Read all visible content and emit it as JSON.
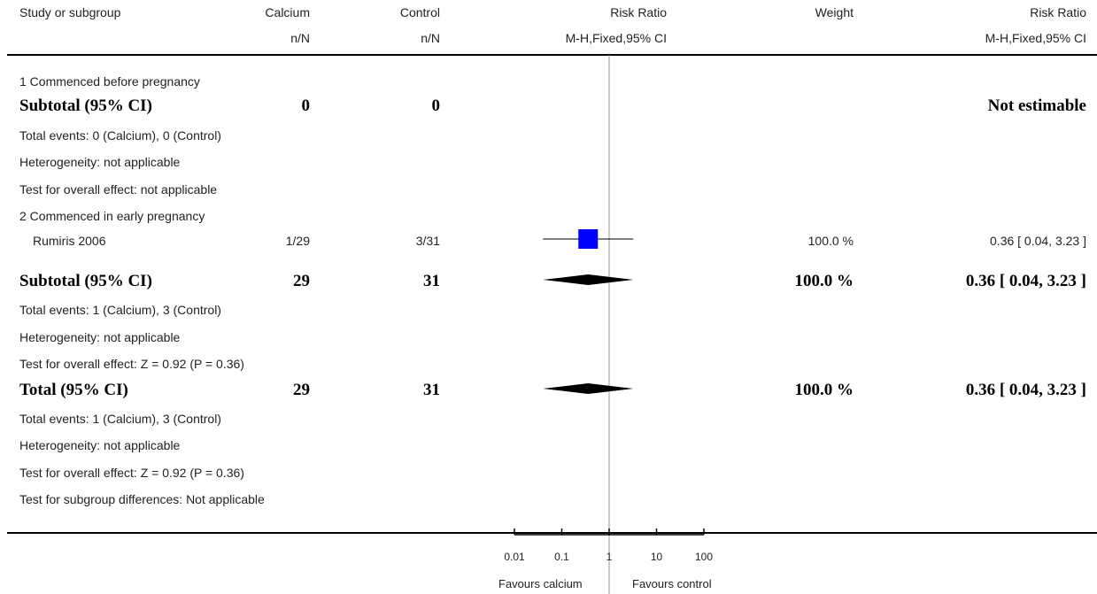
{
  "header": {
    "study": "Study or subgroup",
    "calcium": "Calcium",
    "control": "Control",
    "rr_plot": "Risk Ratio",
    "weight": "Weight",
    "rr_text": "Risk Ratio",
    "calcium_sub": "n/N",
    "control_sub": "n/N",
    "rr_plot_sub": "M-H,Fixed,95% CI",
    "rr_text_sub": "M-H,Fixed,95% CI"
  },
  "rows": {
    "g1_title": "1 Commenced before pregnancy",
    "g1_subtotal": {
      "label": "Subtotal (95% CI)",
      "calcium": "0",
      "control": "0",
      "ci": "Not estimable"
    },
    "g1_events": "Total events: 0 (Calcium), 0 (Control)",
    "g1_het": "Heterogeneity: not applicable",
    "g1_test": "Test for overall effect: not applicable",
    "g2_title": "2 Commenced in early pregnancy",
    "g2_study": {
      "label": "Rumiris 2006",
      "calcium": "1/29",
      "control": "3/31",
      "weight": "100.0 %",
      "ci": "0.36 [ 0.04, 3.23 ]"
    },
    "g2_subtotal": {
      "label": "Subtotal (95% CI)",
      "calcium": "29",
      "control": "31",
      "weight": "100.0 %",
      "ci": "0.36 [ 0.04, 3.23 ]"
    },
    "g2_events": "Total events: 1 (Calcium), 3 (Control)",
    "g2_het": "Heterogeneity: not applicable",
    "g2_test": "Test for overall effect: Z = 0.92 (P = 0.36)",
    "total": {
      "label": "Total (95% CI)",
      "calcium": "29",
      "control": "31",
      "weight": "100.0 %",
      "ci": "0.36 [ 0.04, 3.23 ]"
    },
    "total_events": "Total events: 1 (Calcium), 3 (Control)",
    "total_het": "Heterogeneity: not applicable",
    "total_test": "Test for overall effect: Z = 0.92 (P = 0.36)",
    "subgroup_test": "Test for subgroup differences: Not applicable"
  },
  "axis": {
    "favours_left": "Favours calcium",
    "favours_right": "Favours control"
  },
  "chart_data": {
    "type": "forest",
    "scale": "log",
    "xlim": [
      0.01,
      100
    ],
    "null_value": 1,
    "ticks": [
      {
        "value": 0.01,
        "label": "0.01"
      },
      {
        "value": 0.1,
        "label": "0.1"
      },
      {
        "value": 1,
        "label": "1"
      },
      {
        "value": 10,
        "label": "10"
      },
      {
        "value": 100,
        "label": "100"
      }
    ],
    "studies": [
      {
        "name": "Rumiris 2006",
        "rr": 0.36,
        "lower": 0.04,
        "upper": 3.23,
        "weight": 100.0,
        "color": "#0000ff"
      }
    ],
    "pooled": [
      {
        "name": "Subtotal (95% CI)",
        "rr": 0.36,
        "lower": 0.04,
        "upper": 3.23
      },
      {
        "name": "Total (95% CI)",
        "rr": 0.36,
        "lower": 0.04,
        "upper": 3.23
      }
    ]
  }
}
